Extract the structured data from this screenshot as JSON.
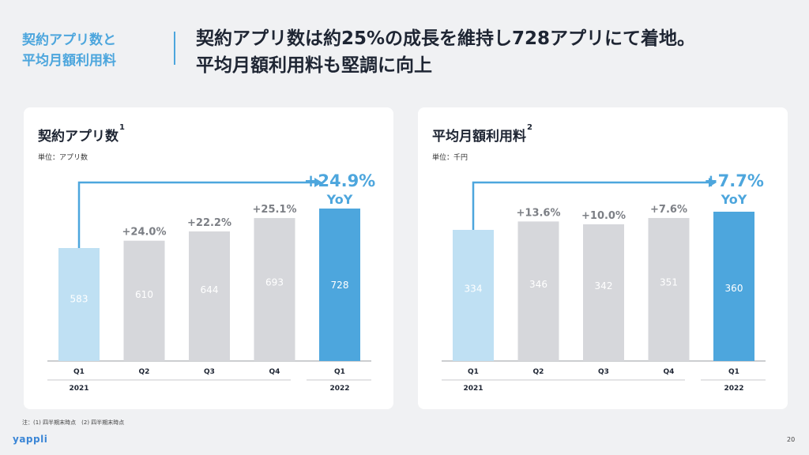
{
  "header": {
    "section_line1": "契約アプリ数と",
    "section_line2": "平均月額利用料",
    "title_line1": "契約アプリ数は約25%の成長を維持し728アプリにて着地。",
    "title_line2": "平均月額利用料も堅調に向上"
  },
  "colors": {
    "accent": "#4da6dd",
    "bar_light": "#bfe0f3",
    "bar_gray": "#d6d7db",
    "bar_strong": "#4da6dd",
    "label_gray": "#7c7f85"
  },
  "chart_data": [
    {
      "type": "bar",
      "title": "契約アプリ数",
      "title_note": "1",
      "unit": "単位：アプリ数",
      "categories": [
        "Q1",
        "Q2",
        "Q3",
        "Q4",
        "Q1"
      ],
      "years": [
        "2021",
        "",
        "",
        "",
        "2022"
      ],
      "values": [
        583,
        610,
        644,
        693,
        728
      ],
      "growth_labels": [
        "",
        "+24.0%",
        "+22.2%",
        "+25.1%",
        ""
      ],
      "yoy": "+24.9%",
      "yoy_label": "YoY",
      "ylim": [
        0,
        800
      ]
    },
    {
      "type": "bar",
      "title": "平均月額利用料",
      "title_note": "2",
      "unit": "単位：千円",
      "categories": [
        "Q1",
        "Q2",
        "Q3",
        "Q4",
        "Q1"
      ],
      "years": [
        "2021",
        "",
        "",
        "",
        "2022"
      ],
      "values": [
        334,
        346,
        342,
        351,
        360
      ],
      "growth_labels": [
        "",
        "+13.6%",
        "+10.0%",
        "+7.6%",
        ""
      ],
      "yoy": "+7.7%",
      "yoy_label": "YoY",
      "ylim": [
        0,
        400
      ]
    }
  ],
  "footnote": "注：(1) 四半期末時点　(2) 四半期末時点",
  "logo": "yappli",
  "page_number": "20"
}
